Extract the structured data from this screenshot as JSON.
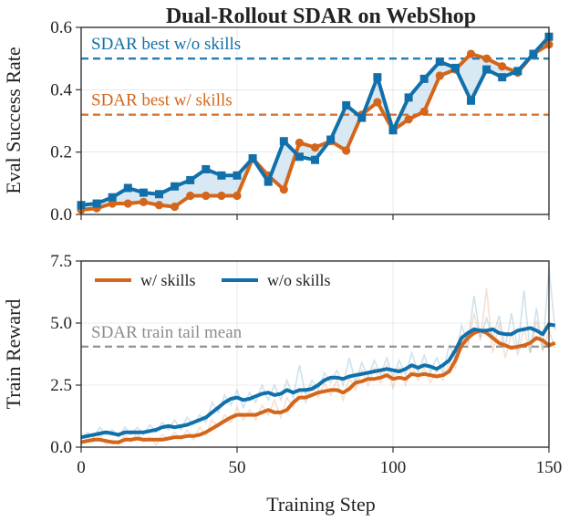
{
  "title": "Dual-Rollout SDAR on WebShop",
  "xlabel": "Training Step",
  "colors": {
    "with_skills": "#d4661b",
    "without_skills": "#1170aa",
    "shade": "#a9cfe6",
    "gray_ref": "#8c8c8c"
  },
  "chart_data": [
    {
      "type": "line",
      "ylabel": "Eval Success Rate",
      "xlim": [
        0,
        150
      ],
      "ylim": [
        0,
        0.6
      ],
      "xticks": [
        0,
        50,
        100,
        150
      ],
      "yticks": [
        0.0,
        0.2,
        0.4,
        0.6
      ],
      "ytick_labels": [
        "0.0",
        "0.2",
        "0.4",
        "0.6"
      ],
      "grid": true,
      "shade_between_series": true,
      "x": [
        0,
        5,
        10,
        15,
        20,
        25,
        30,
        35,
        40,
        45,
        50,
        55,
        60,
        65,
        70,
        75,
        80,
        85,
        90,
        95,
        100,
        105,
        110,
        115,
        120,
        125,
        130,
        135,
        140,
        145,
        150
      ],
      "series": [
        {
          "name": "w/ skills",
          "color_key": "with_skills",
          "marker": "circle",
          "values": [
            0.015,
            0.02,
            0.035,
            0.035,
            0.04,
            0.03,
            0.025,
            0.06,
            0.06,
            0.06,
            0.06,
            0.18,
            0.125,
            0.08,
            0.23,
            0.215,
            0.235,
            0.205,
            0.32,
            0.36,
            0.27,
            0.305,
            0.33,
            0.445,
            0.465,
            0.515,
            0.5,
            0.475,
            0.455,
            0.515,
            0.545
          ]
        },
        {
          "name": "w/o skills",
          "color_key": "without_skills",
          "marker": "square",
          "values": [
            0.03,
            0.035,
            0.055,
            0.085,
            0.07,
            0.065,
            0.09,
            0.11,
            0.145,
            0.125,
            0.125,
            0.18,
            0.105,
            0.235,
            0.185,
            0.175,
            0.24,
            0.35,
            0.31,
            0.44,
            0.27,
            0.375,
            0.435,
            0.49,
            0.47,
            0.365,
            0.465,
            0.44,
            0.46,
            0.515,
            0.57
          ]
        }
      ],
      "reference_lines": [
        {
          "y": 0.5,
          "label": "SDAR best w/o skills",
          "color_key": "without_skills"
        },
        {
          "y": 0.32,
          "label": "SDAR best w/ skills",
          "color_key": "with_skills"
        }
      ]
    },
    {
      "type": "line",
      "ylabel": "Train Reward",
      "xlim": [
        0,
        150
      ],
      "ylim": [
        0,
        7.5
      ],
      "xticks": [
        0,
        50,
        100,
        150
      ],
      "yticks": [
        0.0,
        2.5,
        5.0,
        7.5
      ],
      "ytick_labels": [
        "0.0",
        "2.5",
        "5.0",
        "7.5"
      ],
      "grid": true,
      "legend": "top-left",
      "x_step": 2,
      "series": [
        {
          "name": "w/ skills",
          "color_key": "with_skills",
          "values": [
            0.2,
            0.25,
            0.3,
            0.3,
            0.25,
            0.2,
            0.2,
            0.3,
            0.3,
            0.35,
            0.3,
            0.3,
            0.3,
            0.3,
            0.35,
            0.4,
            0.4,
            0.45,
            0.45,
            0.5,
            0.6,
            0.75,
            0.9,
            1.05,
            1.2,
            1.3,
            1.3,
            1.3,
            1.3,
            1.4,
            1.5,
            1.4,
            1.4,
            1.5,
            1.8,
            2.0,
            2.0,
            2.1,
            2.2,
            2.25,
            2.3,
            2.3,
            2.2,
            2.35,
            2.6,
            2.65,
            2.75,
            2.75,
            2.8,
            2.9,
            2.75,
            2.8,
            2.75,
            2.95,
            2.9,
            2.95,
            2.9,
            2.85,
            2.9,
            3.05,
            3.5,
            4.1,
            4.4,
            4.6,
            4.7,
            4.6,
            4.4,
            4.2,
            4.1,
            4.0,
            4.05,
            4.1,
            4.2,
            4.4,
            4.3,
            4.1,
            4.2
          ],
          "raw_values": [
            0.1,
            0.4,
            0.2,
            0.5,
            0.1,
            0.3,
            0.1,
            0.5,
            0.2,
            0.6,
            0.2,
            0.4,
            0.1,
            0.5,
            0.3,
            0.6,
            0.3,
            0.7,
            0.3,
            0.8,
            0.5,
            1.1,
            0.8,
            1.3,
            1.0,
            1.6,
            1.1,
            1.5,
            1.1,
            1.7,
            1.3,
            1.9,
            1.2,
            2.0,
            1.6,
            2.3,
            1.8,
            2.5,
            2.0,
            2.6,
            2.1,
            2.7,
            1.9,
            2.8,
            2.3,
            3.1,
            2.5,
            3.2,
            2.6,
            3.3,
            2.4,
            3.2,
            2.5,
            3.3,
            2.7,
            3.2,
            2.6,
            3.1,
            2.7,
            3.4,
            3.2,
            4.5,
            4.0,
            5.4,
            4.3,
            6.4,
            3.8,
            5.0,
            3.6,
            4.6,
            3.7,
            4.8,
            3.8,
            5.1,
            3.9,
            4.7,
            4.0
          ]
        },
        {
          "name": "w/o skills",
          "color_key": "without_skills",
          "values": [
            0.4,
            0.45,
            0.5,
            0.55,
            0.6,
            0.55,
            0.5,
            0.6,
            0.6,
            0.6,
            0.6,
            0.65,
            0.7,
            0.8,
            0.85,
            0.8,
            0.85,
            0.9,
            1.0,
            1.1,
            1.2,
            1.4,
            1.6,
            1.8,
            1.95,
            2.0,
            1.9,
            1.95,
            2.05,
            2.15,
            2.2,
            2.1,
            2.15,
            2.3,
            2.2,
            2.3,
            2.3,
            2.35,
            2.5,
            2.7,
            2.8,
            2.8,
            2.75,
            2.85,
            2.9,
            2.95,
            3.0,
            3.05,
            3.1,
            3.15,
            3.1,
            3.05,
            3.15,
            3.3,
            3.2,
            3.3,
            3.25,
            3.15,
            3.3,
            3.5,
            3.9,
            4.4,
            4.6,
            4.75,
            4.7,
            4.7,
            4.75,
            4.6,
            4.55,
            4.55,
            4.7,
            4.75,
            4.8,
            4.7,
            4.55,
            4.95,
            4.9
          ],
          "raw_values": [
            0.3,
            0.6,
            0.4,
            0.8,
            0.5,
            0.7,
            0.4,
            0.8,
            0.5,
            0.8,
            0.5,
            0.9,
            0.6,
            1.0,
            0.7,
            1.1,
            0.7,
            1.2,
            0.9,
            1.3,
            1.0,
            1.8,
            1.4,
            2.1,
            1.7,
            2.3,
            1.6,
            2.2,
            1.8,
            2.5,
            1.9,
            2.5,
            1.9,
            2.7,
            2.0,
            3.3,
            2.1,
            2.7,
            2.3,
            3.0,
            2.6,
            3.1,
            2.5,
            3.6,
            2.6,
            3.4,
            2.8,
            3.5,
            2.9,
            3.6,
            2.8,
            3.5,
            2.9,
            3.8,
            3.0,
            3.7,
            3.0,
            3.6,
            3.0,
            4.1,
            3.6,
            4.9,
            4.2,
            6.1,
            4.4,
            5.2,
            4.4,
            5.3,
            4.0,
            5.4,
            3.9,
            6.3,
            3.8,
            5.6,
            3.9,
            7.2,
            4.7
          ]
        }
      ],
      "reference_lines": [
        {
          "y": 4.05,
          "label": "SDAR train tail mean",
          "color_key": "gray_ref"
        }
      ]
    }
  ]
}
